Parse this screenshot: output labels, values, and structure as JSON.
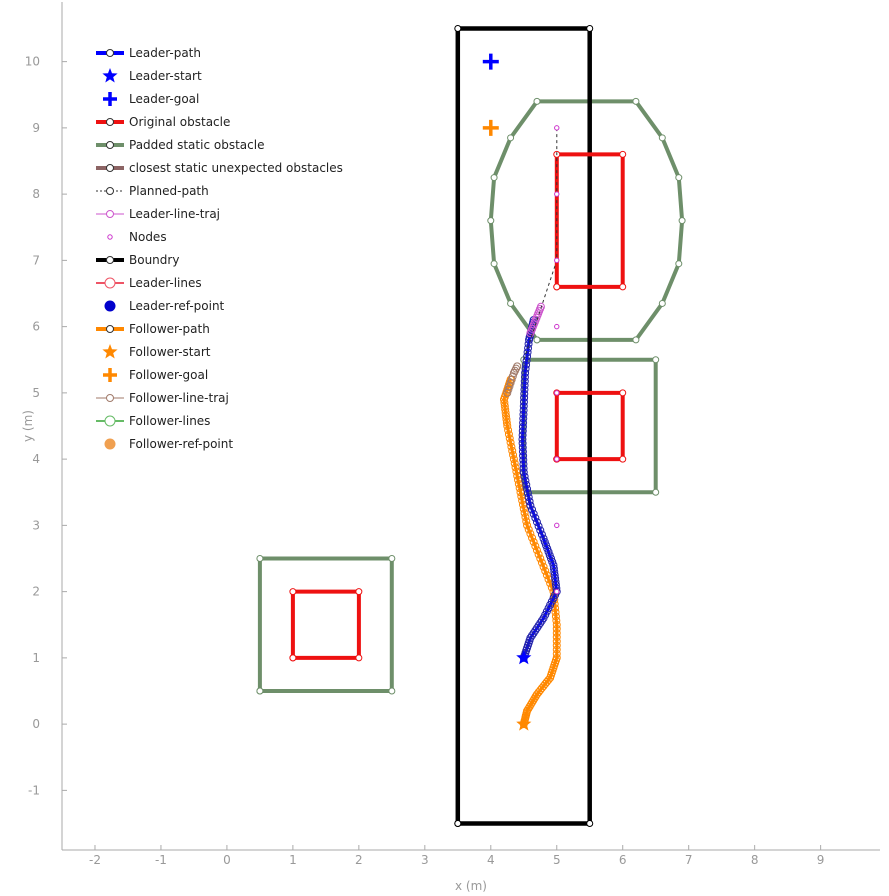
{
  "chart_data": {
    "type": "line",
    "xlabel": "x (m)",
    "ylabel": "y (m)",
    "xlim": [
      -2.5,
      9.9
    ],
    "ylim": [
      -1.9,
      10.9
    ],
    "xticks": [
      "-2",
      "-1",
      "0",
      "1",
      "2",
      "3",
      "4",
      "5",
      "6",
      "7",
      "8",
      "9"
    ],
    "yticks": [
      "-1",
      "0",
      "1",
      "2",
      "3",
      "4",
      "5",
      "6",
      "7",
      "8",
      "9",
      "10"
    ],
    "grid": false,
    "legend_position": "top-left",
    "legend": [
      {
        "label": "Leader-path",
        "color": "#0000ff",
        "kind": "thick-line-marker"
      },
      {
        "label": "Leader-start",
        "color": "#0000ff",
        "kind": "star"
      },
      {
        "label": "Leader-goal",
        "color": "#0000ff",
        "kind": "plus"
      },
      {
        "label": "Original obstacle",
        "color": "#ee1111",
        "kind": "thick-line-marker"
      },
      {
        "label": "Padded static obstacle",
        "color": "#6e8f6a",
        "kind": "thick-line-marker"
      },
      {
        "label": "closest static unexpected obstacles",
        "color": "#8c6464",
        "kind": "thick-line-marker"
      },
      {
        "label": "Planned-path",
        "color": "#333333",
        "kind": "dashed-marker"
      },
      {
        "label": "Leader-line-traj",
        "color": "#cc55cc",
        "kind": "thin-line-marker"
      },
      {
        "label": "Nodes",
        "color": "#cc33cc",
        "kind": "small-marker"
      },
      {
        "label": "Boundry",
        "color": "#000000",
        "kind": "thick-line-marker"
      },
      {
        "label": "Leader-lines",
        "color": "#ee5566",
        "kind": "line-big-marker"
      },
      {
        "label": "Leader-ref-point",
        "color": "#0000cc",
        "kind": "dot"
      },
      {
        "label": "Follower-path",
        "color": "#ff8800",
        "kind": "thick-line-marker"
      },
      {
        "label": "Follower-start",
        "color": "#ff8800",
        "kind": "star"
      },
      {
        "label": "Follower-goal",
        "color": "#ff8800",
        "kind": "plus"
      },
      {
        "label": "Follower-line-traj",
        "color": "#a07a6a",
        "kind": "thin-line-marker"
      },
      {
        "label": "Follower-lines",
        "color": "#66bb66",
        "kind": "line-big-marker"
      },
      {
        "label": "Follower-ref-point",
        "color": "#f0a050",
        "kind": "dot"
      }
    ],
    "boundary": {
      "color": "#000000",
      "points": [
        [
          3.5,
          -1.5
        ],
        [
          5.5,
          -1.5
        ],
        [
          5.5,
          10.5
        ],
        [
          3.5,
          10.5
        ],
        [
          3.5,
          -1.5
        ]
      ]
    },
    "original_obstacles": {
      "color": "#ee1111",
      "polygons": [
        [
          [
            1,
            1
          ],
          [
            2,
            1
          ],
          [
            2,
            2
          ],
          [
            1,
            2
          ],
          [
            1,
            1
          ]
        ],
        [
          [
            5,
            4
          ],
          [
            6,
            4
          ],
          [
            6,
            5
          ],
          [
            5,
            5
          ],
          [
            5,
            4
          ]
        ],
        [
          [
            5,
            6.6
          ],
          [
            6,
            6.6
          ],
          [
            6,
            8.6
          ],
          [
            5,
            8.6
          ],
          [
            5,
            6.6
          ]
        ]
      ]
    },
    "padded_obstacles": {
      "color": "#6e8f6a",
      "polygons": [
        [
          [
            0.5,
            0.5
          ],
          [
            2.5,
            0.5
          ],
          [
            2.5,
            2.5
          ],
          [
            0.5,
            2.5
          ],
          [
            0.5,
            0.5
          ]
        ],
        [
          [
            4.5,
            3.5
          ],
          [
            6.5,
            3.5
          ],
          [
            6.5,
            5.5
          ],
          [
            4.5,
            5.5
          ],
          [
            4.5,
            3.5
          ]
        ],
        [
          [
            4.7,
            5.8
          ],
          [
            6.2,
            5.8
          ],
          [
            6.6,
            6.35
          ],
          [
            6.85,
            6.95
          ],
          [
            6.9,
            7.6
          ],
          [
            6.85,
            8.25
          ],
          [
            6.6,
            8.85
          ],
          [
            6.2,
            9.4
          ],
          [
            4.7,
            9.4
          ],
          [
            4.3,
            8.85
          ],
          [
            4.05,
            8.25
          ],
          [
            4.0,
            7.6
          ],
          [
            4.05,
            6.95
          ],
          [
            4.3,
            6.35
          ],
          [
            4.7,
            5.8
          ]
        ]
      ]
    },
    "leader": {
      "color": "#0000ff",
      "start": [
        4.5,
        1.0
      ],
      "goal": [
        4.0,
        10.0
      ],
      "path": [
        [
          4.5,
          1.0
        ],
        [
          4.6,
          1.3
        ],
        [
          4.8,
          1.6
        ],
        [
          5.0,
          2.0
        ],
        [
          4.95,
          2.4
        ],
        [
          4.8,
          2.8
        ],
        [
          4.6,
          3.3
        ],
        [
          4.5,
          3.8
        ],
        [
          4.48,
          4.3
        ],
        [
          4.5,
          4.8
        ],
        [
          4.52,
          5.3
        ],
        [
          4.58,
          5.8
        ],
        [
          4.65,
          6.1
        ]
      ]
    },
    "leader_line_traj": {
      "color": "#cc55cc",
      "points": [
        [
          4.6,
          5.9
        ],
        [
          4.64,
          6.0
        ],
        [
          4.68,
          6.1
        ],
        [
          4.72,
          6.2
        ],
        [
          4.76,
          6.3
        ]
      ]
    },
    "planned_path": {
      "color": "#333333",
      "points": [
        [
          4.5,
          5.5
        ],
        [
          5.0,
          7.0
        ],
        [
          5.0,
          8.0
        ],
        [
          5.0,
          9.0
        ]
      ]
    },
    "nodes": {
      "color": "#cc33cc",
      "points": [
        [
          5.0,
          9.0
        ],
        [
          5.0,
          8.0
        ],
        [
          5.0,
          7.0
        ],
        [
          5.0,
          6.0
        ],
        [
          5.0,
          5.0
        ],
        [
          5.0,
          4.0
        ],
        [
          5.0,
          3.0
        ],
        [
          5.0,
          2.0
        ]
      ]
    },
    "follower": {
      "color": "#ff8800",
      "start": [
        4.5,
        0.0
      ],
      "goal": [
        4.0,
        9.0
      ],
      "path": [
        [
          4.5,
          0.0
        ],
        [
          4.55,
          0.2
        ],
        [
          4.7,
          0.45
        ],
        [
          4.9,
          0.7
        ],
        [
          5.0,
          1.0
        ],
        [
          5.0,
          1.5
        ],
        [
          4.95,
          2.0
        ],
        [
          4.75,
          2.5
        ],
        [
          4.55,
          3.0
        ],
        [
          4.45,
          3.5
        ],
        [
          4.35,
          4.0
        ],
        [
          4.25,
          4.5
        ],
        [
          4.2,
          4.9
        ],
        [
          4.3,
          5.2
        ]
      ]
    },
    "follower_line_traj": {
      "color": "#a07a6a",
      "points": [
        [
          4.25,
          5.0
        ],
        [
          4.3,
          5.15
        ],
        [
          4.35,
          5.3
        ],
        [
          4.4,
          5.4
        ]
      ]
    }
  }
}
